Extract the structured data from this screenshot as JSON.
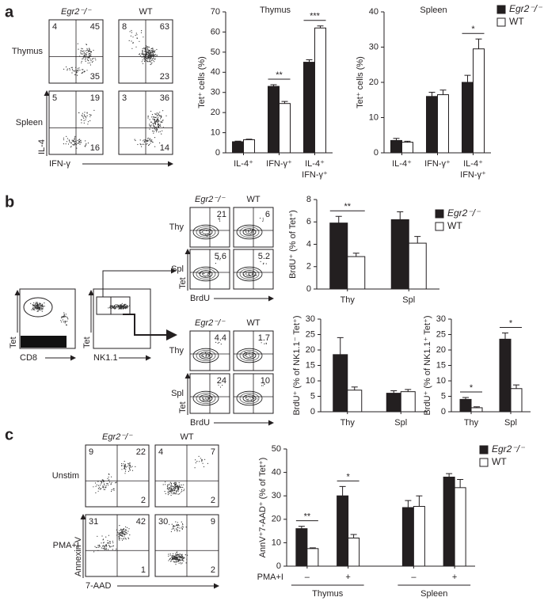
{
  "panels": [
    {
      "letter": "a",
      "flow": [
        {
          "columns": [
            "Egr2⁻/⁻",
            "WT"
          ],
          "rows": [
            "Thymus",
            "Spleen"
          ],
          "y_axis": "IL-4",
          "x_axis": "IFN-γ",
          "plots": [
            [
              {
                "tl": "4",
                "tr": "45",
                "br": "35"
              },
              {
                "tl": "8",
                "tr": "63",
                "br": "23"
              }
            ],
            [
              {
                "tl": "5",
                "tr": "19",
                "br": "16"
              },
              {
                "tl": "3",
                "tr": "36",
                "br": "14"
              }
            ]
          ]
        }
      ]
    },
    {
      "letter": "b",
      "gating": [
        {
          "y_axis": "Tet",
          "x_axis": "CD8"
        },
        {
          "y_axis": "Tet",
          "x_axis": "NK1.1"
        }
      ],
      "flow": [
        {
          "columns": [
            "Egr2⁻/⁻",
            "WT"
          ],
          "rows": [
            "Thy",
            "Spl"
          ],
          "y_axis": "Tet",
          "x_axis": "BrdU",
          "plots": [
            [
              {
                "tr": "21"
              },
              {
                "tr": "6"
              }
            ],
            [
              {
                "tr": "5.6"
              },
              {
                "tr": "5.2"
              }
            ]
          ]
        },
        {
          "columns": [
            "Egr2⁻/⁻",
            "WT"
          ],
          "rows": [
            "Thy",
            "Spl"
          ],
          "y_axis": "Tet",
          "x_axis": "BrdU",
          "plots": [
            [
              {
                "tr": "4.4"
              },
              {
                "tr": "1.7"
              }
            ],
            [
              {
                "tr": "24"
              },
              {
                "tr": "10"
              }
            ]
          ]
        }
      ]
    },
    {
      "letter": "c",
      "flow": [
        {
          "columns": [
            "Egr2⁻/⁻",
            "WT"
          ],
          "rows": [
            "Unstim",
            "PMA+I"
          ],
          "y_axis": "Annexin V",
          "x_axis": "7-AAD",
          "plots": [
            [
              {
                "tl": "9",
                "tr": "22",
                "br": "2"
              },
              {
                "tl": "4",
                "tr": "7",
                "br": "2"
              }
            ],
            [
              {
                "tl": "31",
                "tr": "42",
                "br": "1"
              },
              {
                "tl": "30",
                "tr": "9",
                "br": "2"
              }
            ]
          ]
        }
      ]
    }
  ],
  "chart_data": [
    {
      "type": "bar",
      "title": "Thymus",
      "y_label": "Tet⁺ cells (%)",
      "categories": [
        "IL-4⁺",
        "IFN-γ⁺",
        "IL-4⁺ IFN-γ⁺"
      ],
      "series": [
        {
          "color": "#231f20",
          "values": [
            5.5,
            33,
            45
          ],
          "errors": [
            0.3,
            0.8,
            1.2
          ]
        },
        {
          "color": "#ffffff",
          "values": [
            6.5,
            24.5,
            62
          ],
          "errors": [
            0.3,
            1,
            1
          ]
        }
      ],
      "significance": [
        null,
        "**",
        "***"
      ],
      "ylim": [
        0,
        70
      ],
      "yticks": [
        0,
        10,
        20,
        30,
        40,
        50,
        60,
        70
      ]
    },
    {
      "type": "bar",
      "title": "Spleen",
      "y_label": "Tet⁺ cells (%)",
      "categories": [
        "IL-4⁺",
        "IFN-γ⁺",
        "IL-4⁺ IFN-γ⁺"
      ],
      "series": [
        {
          "name": "Egr2⁻/⁻",
          "color": "#231f20",
          "values": [
            3.5,
            16,
            20
          ],
          "errors": [
            0.6,
            1.2,
            2
          ]
        },
        {
          "name": "WT",
          "color": "#ffffff",
          "values": [
            3,
            16.5,
            29.5
          ],
          "errors": [
            0.3,
            1.3,
            2.8
          ]
        }
      ],
      "significance": [
        null,
        null,
        "*"
      ],
      "ylim": [
        0,
        40
      ],
      "yticks": [
        0,
        10,
        20,
        30,
        40
      ],
      "legend": "right"
    },
    {
      "type": "bar",
      "y_label": "BrdU⁺ (% of Tet⁺)",
      "categories": [
        "Thy",
        "Spl"
      ],
      "series": [
        {
          "name": "Egr2⁻/⁻",
          "color": "#231f20",
          "values": [
            5.9,
            6.2
          ],
          "errors": [
            0.6,
            0.7
          ]
        },
        {
          "name": "WT",
          "color": "#ffffff",
          "values": [
            2.9,
            4.1
          ],
          "errors": [
            0.3,
            0.6
          ]
        }
      ],
      "significance": [
        "**",
        null
      ],
      "ylim": [
        0,
        8
      ],
      "yticks": [
        0,
        2,
        4,
        6,
        8
      ],
      "legend": "right"
    },
    {
      "type": "bar",
      "y_label": "BrdU⁺ (% of NK1.1⁻ Tet⁺)",
      "categories": [
        "Thy",
        "Spl"
      ],
      "series": [
        {
          "color": "#231f20",
          "values": [
            18.5,
            6
          ],
          "errors": [
            5.5,
            0.8
          ]
        },
        {
          "color": "#ffffff",
          "values": [
            7,
            6.5
          ],
          "errors": [
            1,
            0.7
          ]
        }
      ],
      "significance": [
        null,
        null
      ],
      "ylim": [
        0,
        30
      ],
      "yticks": [
        0,
        5,
        10,
        15,
        20,
        25,
        30
      ]
    },
    {
      "type": "bar",
      "y_label": "BrdU⁺ (% of NK1.1⁺ Tet⁺)",
      "categories": [
        "Thy",
        "Spl"
      ],
      "series": [
        {
          "color": "#231f20",
          "values": [
            4,
            23.5
          ],
          "errors": [
            0.6,
            2
          ]
        },
        {
          "color": "#ffffff",
          "values": [
            1.3,
            7.5
          ],
          "errors": [
            0.3,
            1.2
          ]
        }
      ],
      "significance": [
        "*",
        "*"
      ],
      "ylim": [
        0,
        30
      ],
      "yticks": [
        0,
        5,
        10,
        15,
        20,
        25,
        30
      ]
    },
    {
      "type": "bar",
      "y_label": "AnnV⁺7-AAD⁺ (% of Tet⁺)",
      "categories": [
        "–",
        "+",
        "–",
        "+"
      ],
      "x_label": "PMA+I",
      "groups": [
        "Thymus",
        "Spleen"
      ],
      "series": [
        {
          "name": "Egr2⁻/⁻",
          "color": "#231f20",
          "values": [
            16,
            30,
            25,
            38
          ],
          "errors": [
            1,
            4,
            3,
            1.5
          ]
        },
        {
          "name": "WT",
          "color": "#ffffff",
          "values": [
            7.5,
            12,
            25.5,
            33.5
          ],
          "errors": [
            0.3,
            1.5,
            4.5,
            3.5
          ]
        }
      ],
      "significance": [
        "**",
        "*",
        null,
        null
      ],
      "ylim": [
        0,
        50
      ],
      "yticks": [
        0,
        10,
        20,
        30,
        40,
        50
      ],
      "legend": "right"
    }
  ]
}
